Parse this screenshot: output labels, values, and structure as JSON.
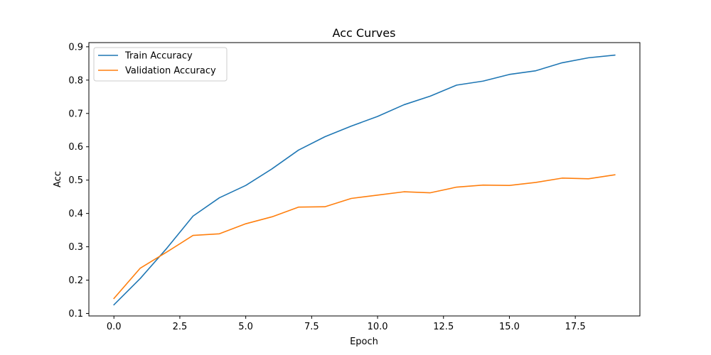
{
  "chart_data": {
    "type": "line",
    "title": "Acc Curves",
    "xlabel": "Epoch",
    "ylabel": "Acc",
    "xlim": [
      -0.95,
      19.95
    ],
    "ylim": [
      0.0925,
      0.9125
    ],
    "xticks": [
      0.0,
      2.5,
      5.0,
      7.5,
      10.0,
      12.5,
      15.0,
      17.5
    ],
    "xtick_labels": [
      "0.0",
      "2.5",
      "5.0",
      "7.5",
      "10.0",
      "12.5",
      "15.0",
      "17.5"
    ],
    "yticks": [
      0.1,
      0.2,
      0.3,
      0.4,
      0.5,
      0.6,
      0.7,
      0.8,
      0.9
    ],
    "ytick_labels": [
      "0.1",
      "0.2",
      "0.3",
      "0.4",
      "0.5",
      "0.6",
      "0.7",
      "0.8",
      "0.9"
    ],
    "grid": false,
    "legend_position": "top-left",
    "x": [
      0,
      1,
      2,
      3,
      4,
      5,
      6,
      7,
      8,
      9,
      10,
      11,
      12,
      13,
      14,
      15,
      16,
      17,
      18,
      19
    ],
    "series": [
      {
        "name": "Train Accuracy",
        "color": "#1f77b4",
        "values": [
          0.126,
          0.205,
          0.295,
          0.392,
          0.447,
          0.484,
          0.534,
          0.59,
          0.63,
          0.662,
          0.691,
          0.726,
          0.752,
          0.785,
          0.797,
          0.817,
          0.828,
          0.852,
          0.867,
          0.875
        ]
      },
      {
        "name": "Validation Accuracy",
        "color": "#ff7f0e",
        "values": [
          0.145,
          0.236,
          0.284,
          0.334,
          0.339,
          0.369,
          0.39,
          0.419,
          0.42,
          0.445,
          0.455,
          0.465,
          0.462,
          0.479,
          0.485,
          0.484,
          0.493,
          0.506,
          0.504,
          0.516
        ]
      }
    ]
  }
}
